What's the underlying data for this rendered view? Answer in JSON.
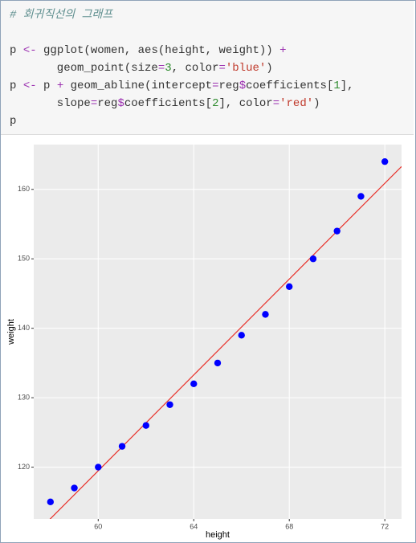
{
  "code": {
    "lines": [
      [
        {
          "t": "# 회귀직선의 그래프",
          "c": "#5f8f8f",
          "i": true
        }
      ],
      [],
      [
        {
          "t": "p ",
          "c": "#333333"
        },
        {
          "t": "<-",
          "c": "#9b30b0"
        },
        {
          "t": " ggplot(women, aes(height, weight)) ",
          "c": "#333333"
        },
        {
          "t": "+",
          "c": "#9b30b0"
        }
      ],
      [
        {
          "t": "       geom_point(size",
          "c": "#333333"
        },
        {
          "t": "=",
          "c": "#9b30b0"
        },
        {
          "t": "3",
          "c": "#2e8b2e"
        },
        {
          "t": ", color",
          "c": "#333333"
        },
        {
          "t": "=",
          "c": "#9b30b0"
        },
        {
          "t": "'blue'",
          "c": "#c0392b"
        },
        {
          "t": ")",
          "c": "#333333"
        }
      ],
      [
        {
          "t": "p ",
          "c": "#333333"
        },
        {
          "t": "<-",
          "c": "#9b30b0"
        },
        {
          "t": " p ",
          "c": "#333333"
        },
        {
          "t": "+",
          "c": "#9b30b0"
        },
        {
          "t": " geom_abline(intercept",
          "c": "#333333"
        },
        {
          "t": "=",
          "c": "#9b30b0"
        },
        {
          "t": "reg",
          "c": "#333333"
        },
        {
          "t": "$",
          "c": "#9b30b0"
        },
        {
          "t": "coefficients[",
          "c": "#333333"
        },
        {
          "t": "1",
          "c": "#2e8b2e"
        },
        {
          "t": "],",
          "c": "#333333"
        }
      ],
      [
        {
          "t": "       slope",
          "c": "#333333"
        },
        {
          "t": "=",
          "c": "#9b30b0"
        },
        {
          "t": "reg",
          "c": "#333333"
        },
        {
          "t": "$",
          "c": "#9b30b0"
        },
        {
          "t": "coefficients[",
          "c": "#333333"
        },
        {
          "t": "2",
          "c": "#2e8b2e"
        },
        {
          "t": "], color",
          "c": "#333333"
        },
        {
          "t": "=",
          "c": "#9b30b0"
        },
        {
          "t": "'red'",
          "c": "#c0392b"
        },
        {
          "t": ")",
          "c": "#333333"
        }
      ],
      [
        {
          "t": "p",
          "c": "#333333"
        }
      ]
    ]
  },
  "chart_data": {
    "type": "scatter",
    "x_label": "height",
    "y_label": "weight",
    "series": [
      {
        "color": "#0000ff",
        "x": [
          58,
          59,
          60,
          61,
          62,
          63,
          64,
          65,
          66,
          67,
          68,
          69,
          70,
          71,
          72
        ],
        "values": [
          115,
          117,
          120,
          123,
          126,
          129,
          132,
          135,
          139,
          142,
          146,
          150,
          154,
          159,
          164
        ]
      }
    ],
    "abline": {
      "intercept": -87.52,
      "slope": 3.45,
      "color": "#e8312a"
    },
    "xlim": [
      57.3,
      72.7
    ],
    "xticks": [
      60,
      64,
      68,
      72
    ],
    "ylim": [
      112.55,
      166.45
    ],
    "yticks": [
      120,
      130,
      140,
      150,
      160
    ],
    "grid": true
  }
}
